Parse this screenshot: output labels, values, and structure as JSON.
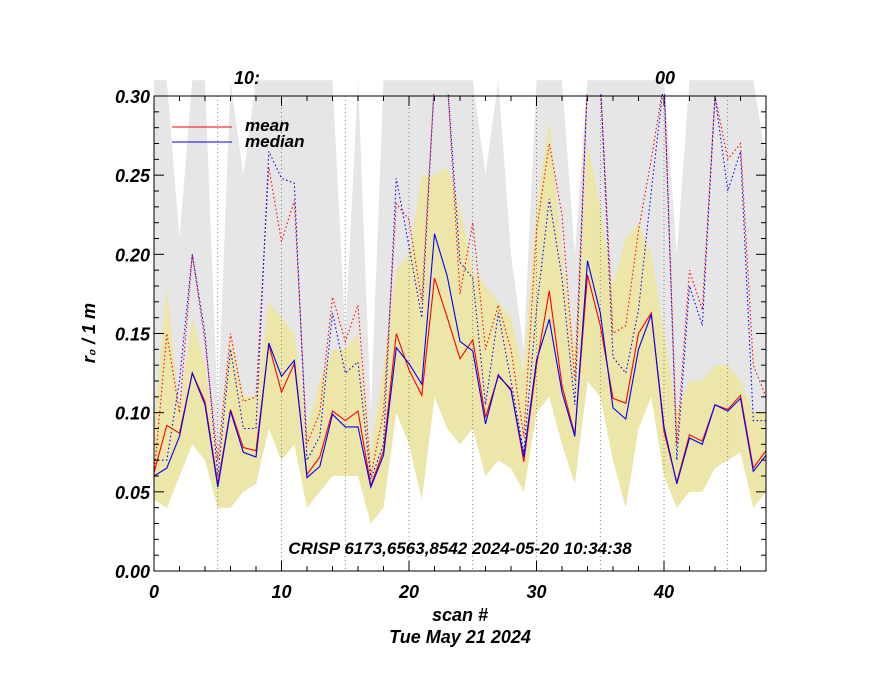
{
  "chart_data": {
    "type": "line",
    "title_fragments": [
      "10:",
      "00"
    ],
    "xlabel": "scan #",
    "date_label": "Tue May 21 2024",
    "ylabel": "r₀ / 1 m",
    "annotation": "CRISP 6173,6563,8542 2024-05-20 10:34:38",
    "xlim": [
      0,
      48
    ],
    "ylim": [
      0,
      0.3
    ],
    "x_ticks": [
      0,
      10,
      20,
      30,
      40
    ],
    "y_ticks": [
      "0.00",
      "0.05",
      "0.10",
      "0.15",
      "0.20",
      "0.25",
      "0.30"
    ],
    "legend": [
      {
        "name": "mean",
        "color": "#ff0000"
      },
      {
        "name": "median",
        "color": "#0000ff"
      }
    ],
    "dotted_vlines": [
      5,
      10,
      15,
      20,
      25,
      30,
      35,
      40,
      45
    ],
    "colors": {
      "band_outer": "#e6e6e6",
      "band_inner": "#ece6a8",
      "mean": "#ff0000",
      "median": "#0000ff"
    },
    "x": [
      0,
      1,
      2,
      3,
      4,
      5,
      6,
      7,
      8,
      9,
      10,
      11,
      12,
      13,
      14,
      15,
      16,
      17,
      18,
      19,
      20,
      21,
      22,
      23,
      24,
      25,
      26,
      27,
      28,
      29,
      30,
      31,
      32,
      33,
      34,
      35,
      36,
      37,
      38,
      39,
      40,
      41,
      42,
      43,
      44,
      45,
      46,
      47,
      48
    ],
    "series": [
      {
        "name": "mean",
        "values": [
          0.062,
          0.092,
          0.087,
          0.125,
          0.107,
          0.055,
          0.102,
          0.078,
          0.076,
          0.143,
          0.113,
          0.131,
          0.061,
          0.072,
          0.101,
          0.095,
          0.101,
          0.054,
          0.076,
          0.15,
          0.127,
          0.111,
          0.185,
          0.16,
          0.134,
          0.146,
          0.097,
          0.123,
          0.115,
          0.069,
          0.13,
          0.177,
          0.117,
          0.086,
          0.187,
          0.155,
          0.109,
          0.106,
          0.15,
          0.163,
          0.088,
          0.056,
          0.086,
          0.082,
          0.105,
          0.102,
          0.111,
          0.065,
          0.076
        ]
      },
      {
        "name": "median",
        "values": [
          0.06,
          0.065,
          0.085,
          0.125,
          0.105,
          0.053,
          0.101,
          0.075,
          0.072,
          0.144,
          0.123,
          0.133,
          0.059,
          0.066,
          0.099,
          0.091,
          0.091,
          0.053,
          0.073,
          0.141,
          0.131,
          0.118,
          0.213,
          0.186,
          0.145,
          0.139,
          0.093,
          0.124,
          0.114,
          0.072,
          0.133,
          0.159,
          0.113,
          0.085,
          0.196,
          0.163,
          0.103,
          0.096,
          0.14,
          0.162,
          0.091,
          0.055,
          0.084,
          0.08,
          0.105,
          0.101,
          0.109,
          0.063,
          0.073
        ]
      },
      {
        "name": "mean_upper",
        "values": [
          0.06,
          0.15,
          0.1,
          0.2,
          0.145,
          0.07,
          0.15,
          0.107,
          0.11,
          0.255,
          0.208,
          0.234,
          0.08,
          0.1,
          0.173,
          0.145,
          0.168,
          0.06,
          0.1,
          0.232,
          0.222,
          0.17,
          0.31,
          0.31,
          0.175,
          0.22,
          0.14,
          0.168,
          0.14,
          0.085,
          0.215,
          0.27,
          0.225,
          0.12,
          0.31,
          0.31,
          0.15,
          0.155,
          0.215,
          0.26,
          0.31,
          0.08,
          0.19,
          0.165,
          0.3,
          0.26,
          0.27,
          0.13,
          0.11
        ]
      },
      {
        "name": "median_upper",
        "values": [
          0.07,
          0.07,
          0.12,
          0.2,
          0.15,
          0.06,
          0.14,
          0.09,
          0.09,
          0.265,
          0.248,
          0.245,
          0.07,
          0.085,
          0.163,
          0.125,
          0.132,
          0.058,
          0.08,
          0.248,
          0.205,
          0.16,
          0.31,
          0.31,
          0.195,
          0.185,
          0.105,
          0.163,
          0.12,
          0.075,
          0.165,
          0.235,
          0.185,
          0.105,
          0.31,
          0.31,
          0.135,
          0.125,
          0.165,
          0.24,
          0.31,
          0.07,
          0.18,
          0.155,
          0.3,
          0.24,
          0.265,
          0.095,
          0.095
        ]
      },
      {
        "name": "band_outer_upper",
        "values": [
          0.31,
          0.31,
          0.21,
          0.31,
          0.31,
          0.1,
          0.31,
          0.25,
          0.31,
          0.31,
          0.31,
          0.31,
          0.31,
          0.31,
          0.31,
          0.15,
          0.31,
          0.1,
          0.31,
          0.31,
          0.31,
          0.31,
          0.31,
          0.31,
          0.31,
          0.31,
          0.25,
          0.31,
          0.2,
          0.14,
          0.31,
          0.31,
          0.31,
          0.2,
          0.31,
          0.31,
          0.31,
          0.31,
          0.31,
          0.31,
          0.31,
          0.2,
          0.31,
          0.31,
          0.31,
          0.31,
          0.31,
          0.31,
          0.26
        ]
      },
      {
        "name": "band_inner_upper",
        "values": [
          0.09,
          0.18,
          0.1,
          0.16,
          0.13,
          0.07,
          0.15,
          0.11,
          0.11,
          0.17,
          0.16,
          0.15,
          0.09,
          0.12,
          0.14,
          0.14,
          0.15,
          0.075,
          0.13,
          0.19,
          0.2,
          0.25,
          0.25,
          0.255,
          0.23,
          0.19,
          0.18,
          0.17,
          0.16,
          0.125,
          0.23,
          0.285,
          0.2,
          0.14,
          0.27,
          0.23,
          0.18,
          0.21,
          0.22,
          0.2,
          0.15,
          0.1,
          0.12,
          0.12,
          0.13,
          0.13,
          0.12,
          0.1,
          0.1
        ]
      },
      {
        "name": "band_inner_lower",
        "values": [
          0.045,
          0.04,
          0.06,
          0.08,
          0.07,
          0.04,
          0.04,
          0.05,
          0.055,
          0.09,
          0.07,
          0.08,
          0.04,
          0.05,
          0.06,
          0.06,
          0.06,
          0.03,
          0.04,
          0.1,
          0.08,
          0.045,
          0.11,
          0.09,
          0.08,
          0.09,
          0.06,
          0.07,
          0.065,
          0.05,
          0.1,
          0.11,
          0.08,
          0.055,
          0.12,
          0.11,
          0.07,
          0.04,
          0.09,
          0.11,
          0.06,
          0.04,
          0.05,
          0.05,
          0.065,
          0.07,
          0.075,
          0.04,
          0.05
        ]
      }
    ]
  }
}
